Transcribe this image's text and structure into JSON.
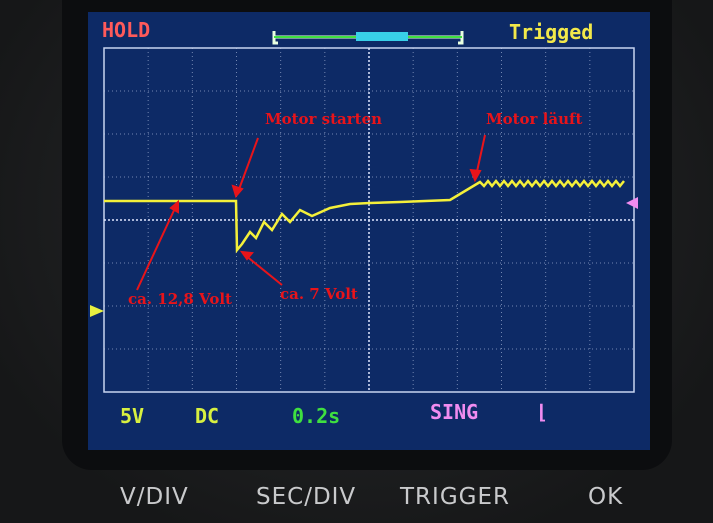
{
  "status": {
    "hold": "HOLD",
    "trigger_state": "Trigged"
  },
  "footer": {
    "volts_div": "5V",
    "coupling": "DC",
    "time_div": "0.2s",
    "mode": "SING",
    "trigger_edge": "⌊"
  },
  "annotations": {
    "start": "Motor starten",
    "running": "Motor läuft",
    "idle_voltage": "ca. 12,8 Volt",
    "drop_voltage": "ca. 7 Volt"
  },
  "buttons": {
    "vdiv": "V/DIV",
    "secdiv": "SEC/DIV",
    "trigger": "TRIGGER",
    "ok": "OK"
  },
  "colors": {
    "screen": "#0d2a66",
    "trace": "#f4f03a",
    "annotation": "#e8141a",
    "hold": "#ff5a5a",
    "trigged": "#f2e84a",
    "time": "#3fe040",
    "mode": "#f08cf0"
  }
}
